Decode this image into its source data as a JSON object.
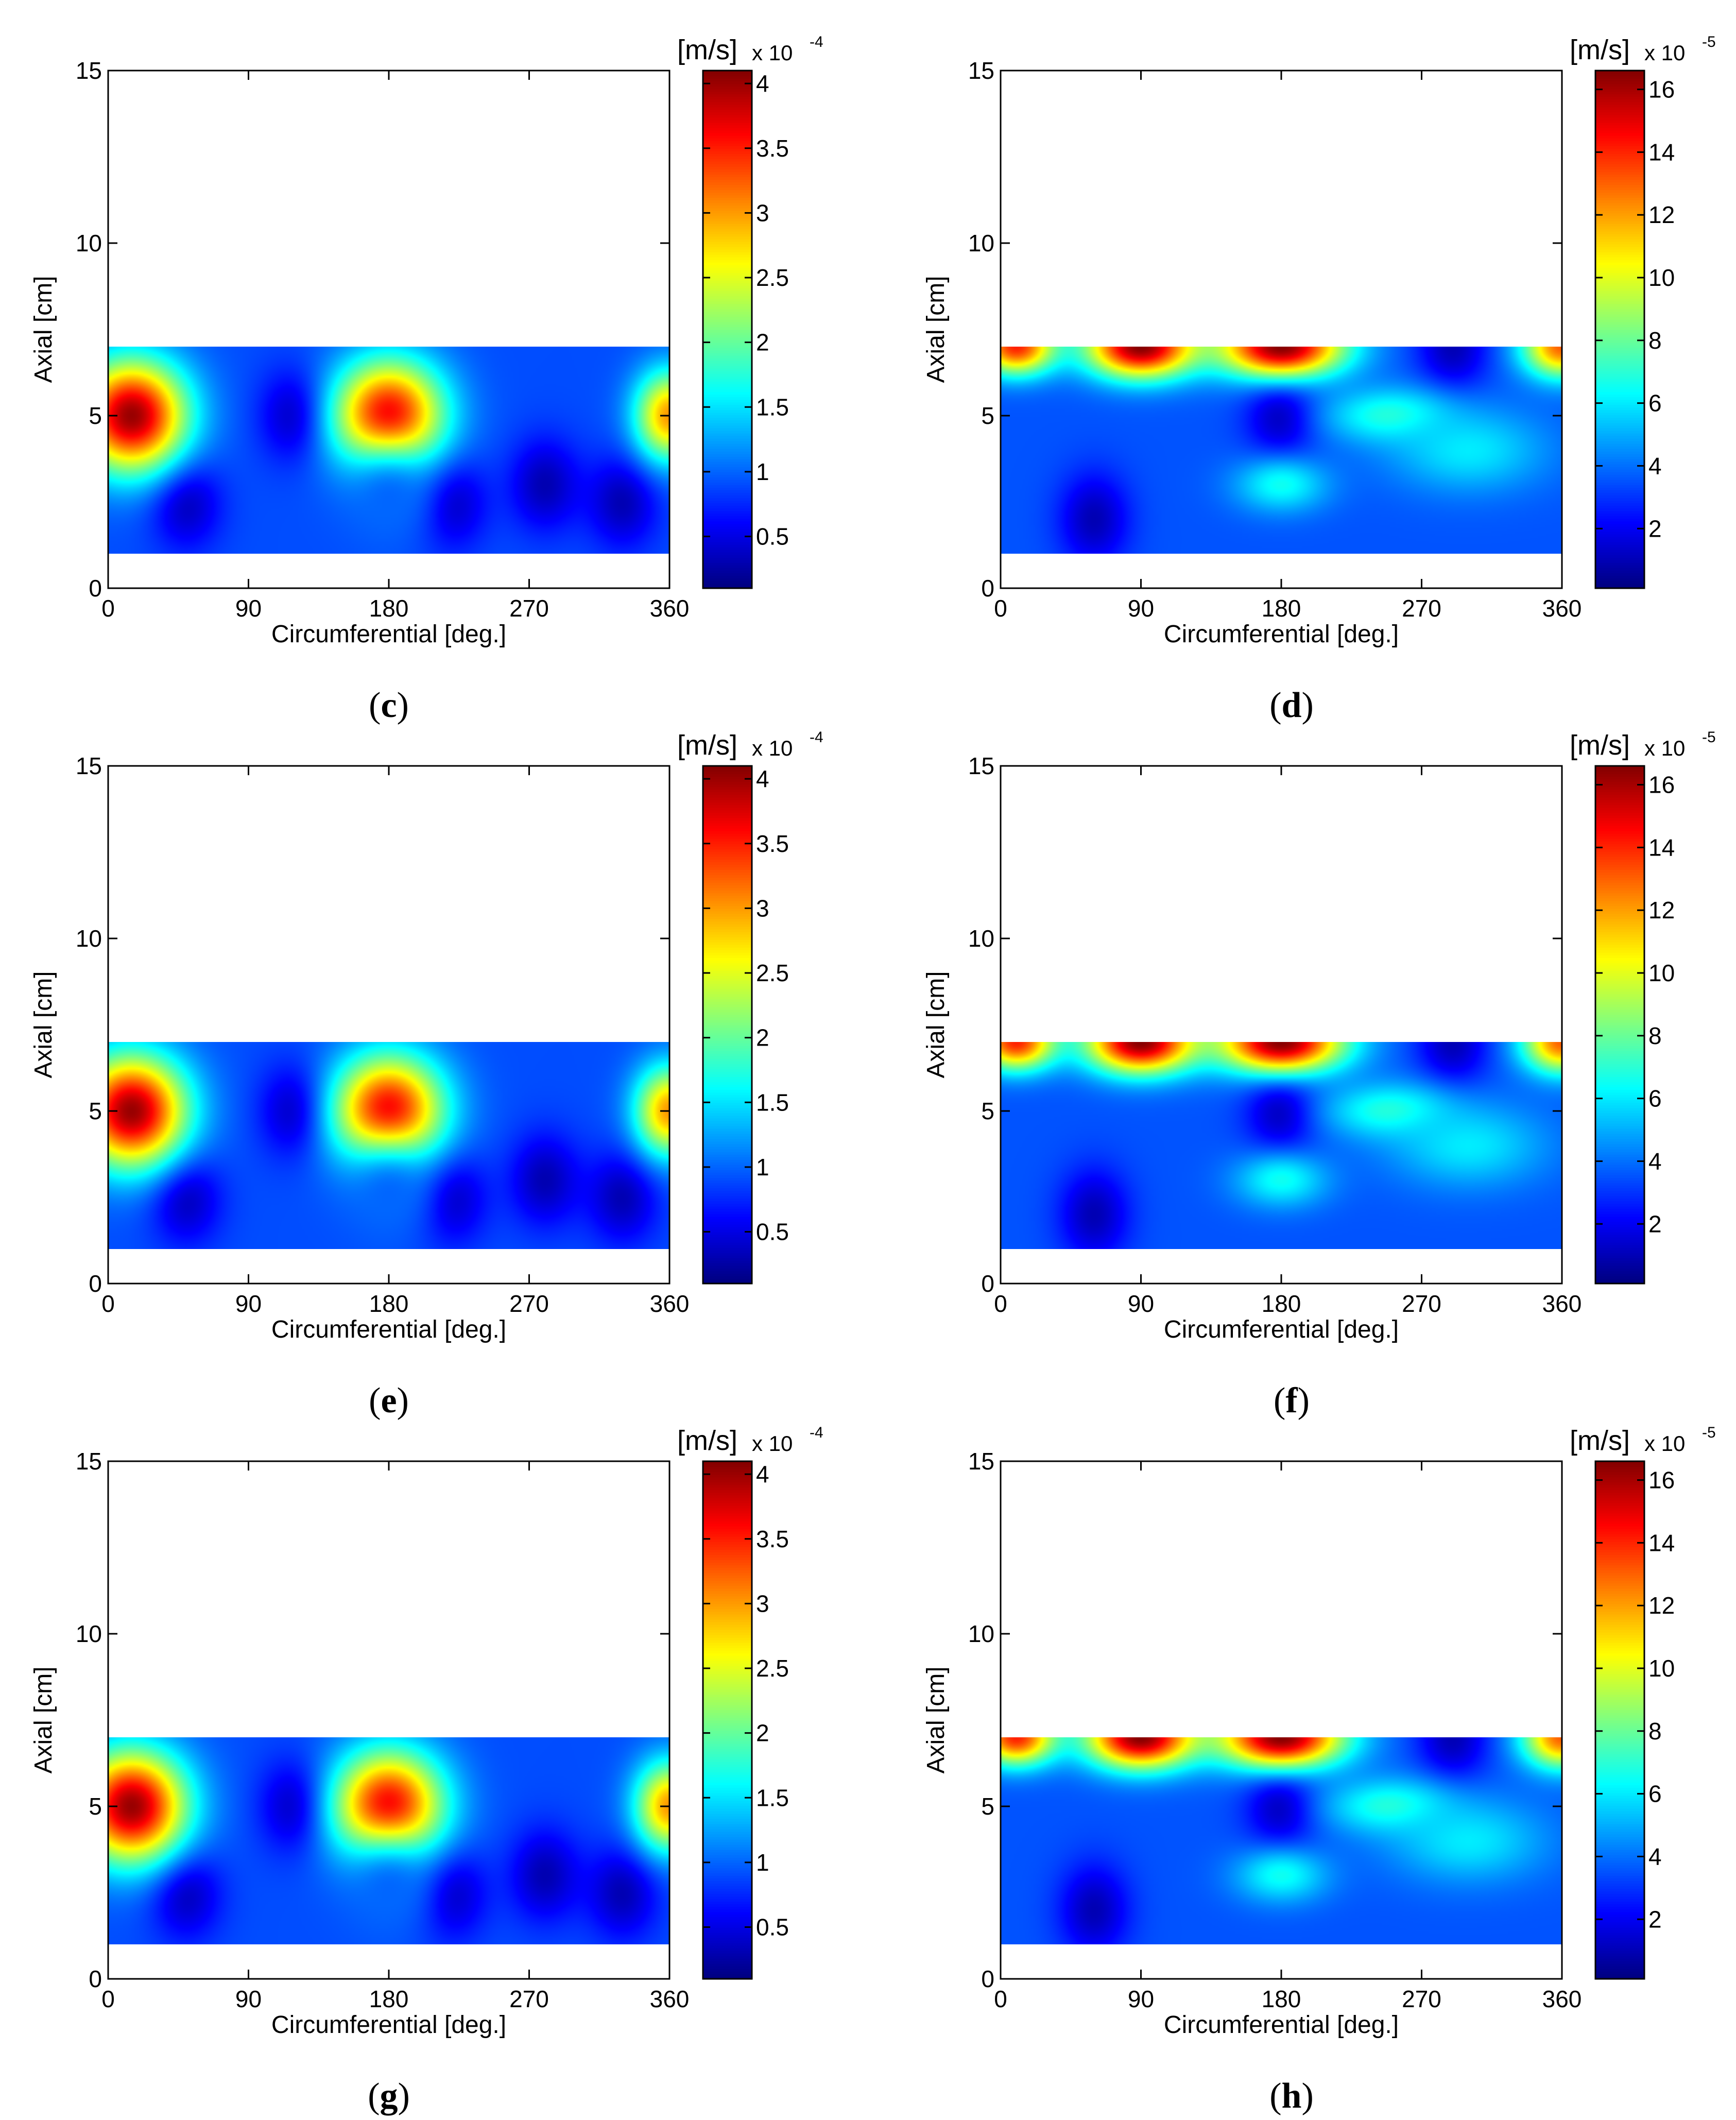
{
  "chart_data": [
    {
      "panel": "c",
      "type": "heatmap",
      "xlabel": "Circumferential [deg.]",
      "ylabel": "Axial [cm]",
      "xlim": [
        0,
        360
      ],
      "ylim": [
        0,
        15
      ],
      "xticks": [
        "0",
        "90",
        "180",
        "270",
        "360"
      ],
      "yticks": [
        "0",
        "5",
        "10",
        "15"
      ],
      "data_extent": {
        "x": [
          0,
          360
        ],
        "y": [
          1,
          7
        ]
      },
      "colormap": "jet",
      "colorbar": {
        "unit": "[m/s]",
        "multiplier": "x 10",
        "exponent": "-4",
        "range": [
          0.1,
          4.1
        ],
        "ticks": [
          "0.5",
          "1",
          "1.5",
          "2",
          "2.5",
          "3",
          "3.5",
          "4"
        ]
      },
      "hotspots": [
        {
          "x": 15,
          "y": 5,
          "value": 4.0,
          "sx": 35,
          "sy": 1.6
        },
        {
          "x": 180,
          "y": 5,
          "value": 3.7,
          "sx": 35,
          "sy": 1.6
        },
        {
          "x": 360,
          "y": 5,
          "value": 3.0,
          "sx": 22,
          "sy": 1.3
        },
        {
          "x": 180,
          "y": 2.5,
          "value": 1.0,
          "sx": 30,
          "sy": 1.5
        }
      ],
      "background": 0.9,
      "darkspots": [
        {
          "x": 50,
          "y": 2.5
        },
        {
          "x": 120,
          "y": 5
        },
        {
          "x": 220,
          "y": 2.5
        },
        {
          "x": 280,
          "y": 3
        },
        {
          "x": 330,
          "y": 2.5
        }
      ],
      "caption": "c"
    },
    {
      "panel": "d",
      "type": "heatmap",
      "xlabel": "Circumferential [deg.]",
      "ylabel": "Axial [cm]",
      "xlim": [
        0,
        360
      ],
      "ylim": [
        0,
        15
      ],
      "xticks": [
        "0",
        "90",
        "180",
        "270",
        "360"
      ],
      "yticks": [
        "0",
        "5",
        "10",
        "15"
      ],
      "data_extent": {
        "x": [
          0,
          360
        ],
        "y": [
          1,
          7
        ]
      },
      "colormap": "jet",
      "colorbar": {
        "unit": "[m/s]",
        "multiplier": "x 10",
        "exponent": "-5",
        "range": [
          0.1,
          16.6
        ],
        "ticks": [
          "2",
          "4",
          "6",
          "8",
          "10",
          "12",
          "14",
          "16"
        ]
      },
      "hotspots": [
        {
          "x": 10,
          "y": 7,
          "value": 14,
          "sx": 25,
          "sy": 0.8
        },
        {
          "x": 90,
          "y": 7,
          "value": 16.5,
          "sx": 35,
          "sy": 0.9
        },
        {
          "x": 180,
          "y": 7,
          "value": 16.5,
          "sx": 40,
          "sy": 0.9
        },
        {
          "x": 360,
          "y": 7,
          "value": 13,
          "sx": 25,
          "sy": 0.9
        },
        {
          "x": 250,
          "y": 5,
          "value": 7,
          "sx": 40,
          "sy": 0.8
        },
        {
          "x": 180,
          "y": 3,
          "value": 6.5,
          "sx": 30,
          "sy": 0.8
        },
        {
          "x": 300,
          "y": 4,
          "value": 6,
          "sx": 50,
          "sy": 1.2
        }
      ],
      "background": 3.5,
      "darkspots": [
        {
          "x": 180,
          "y": 5
        },
        {
          "x": 290,
          "y": 7
        },
        {
          "x": 60,
          "y": 2
        }
      ],
      "caption": "d"
    },
    {
      "panel": "e",
      "type": "heatmap",
      "xlabel": "Circumferential [deg.]",
      "ylabel": "Axial [cm]",
      "xlim": [
        0,
        360
      ],
      "ylim": [
        0,
        15
      ],
      "xticks": [
        "0",
        "90",
        "180",
        "270",
        "360"
      ],
      "yticks": [
        "0",
        "5",
        "10",
        "15"
      ],
      "data_extent": {
        "x": [
          0,
          360
        ],
        "y": [
          1,
          7
        ]
      },
      "colormap": "jet",
      "colorbar": {
        "unit": "[m/s]",
        "multiplier": "x 10",
        "exponent": "-4",
        "range": [
          0.1,
          4.1
        ],
        "ticks": [
          "0.5",
          "1",
          "1.5",
          "2",
          "2.5",
          "3",
          "3.5",
          "4"
        ]
      },
      "hotspots": [
        {
          "x": 15,
          "y": 5,
          "value": 4.0,
          "sx": 35,
          "sy": 1.6
        },
        {
          "x": 180,
          "y": 5,
          "value": 3.7,
          "sx": 35,
          "sy": 1.6
        },
        {
          "x": 360,
          "y": 5,
          "value": 3.0,
          "sx": 22,
          "sy": 1.3
        },
        {
          "x": 180,
          "y": 2.5,
          "value": 1.0,
          "sx": 30,
          "sy": 1.5
        }
      ],
      "background": 0.9,
      "darkspots": [
        {
          "x": 50,
          "y": 2.5
        },
        {
          "x": 120,
          "y": 5
        },
        {
          "x": 220,
          "y": 2.5
        },
        {
          "x": 280,
          "y": 3
        },
        {
          "x": 330,
          "y": 2.5
        }
      ],
      "caption": "e"
    },
    {
      "panel": "f",
      "type": "heatmap",
      "xlabel": "Circumferential [deg.]",
      "ylabel": "Axial [cm]",
      "xlim": [
        0,
        360
      ],
      "ylim": [
        0,
        15
      ],
      "xticks": [
        "0",
        "90",
        "180",
        "270",
        "360"
      ],
      "yticks": [
        "0",
        "5",
        "10",
        "15"
      ],
      "data_extent": {
        "x": [
          0,
          360
        ],
        "y": [
          1,
          7
        ]
      },
      "colormap": "jet",
      "colorbar": {
        "unit": "[m/s]",
        "multiplier": "x 10",
        "exponent": "-5",
        "range": [
          0.1,
          16.6
        ],
        "ticks": [
          "2",
          "4",
          "6",
          "8",
          "10",
          "12",
          "14",
          "16"
        ]
      },
      "hotspots": [
        {
          "x": 10,
          "y": 7,
          "value": 14,
          "sx": 25,
          "sy": 0.8
        },
        {
          "x": 90,
          "y": 7,
          "value": 16.5,
          "sx": 35,
          "sy": 0.9
        },
        {
          "x": 180,
          "y": 7,
          "value": 16.5,
          "sx": 40,
          "sy": 0.9
        },
        {
          "x": 360,
          "y": 7,
          "value": 13,
          "sx": 25,
          "sy": 0.9
        },
        {
          "x": 250,
          "y": 5,
          "value": 7,
          "sx": 40,
          "sy": 0.8
        },
        {
          "x": 180,
          "y": 3,
          "value": 6.5,
          "sx": 30,
          "sy": 0.8
        },
        {
          "x": 300,
          "y": 4,
          "value": 6,
          "sx": 50,
          "sy": 1.2
        }
      ],
      "background": 3.5,
      "darkspots": [
        {
          "x": 180,
          "y": 5
        },
        {
          "x": 290,
          "y": 7
        },
        {
          "x": 60,
          "y": 2
        }
      ],
      "caption": "f"
    },
    {
      "panel": "g",
      "type": "heatmap",
      "xlabel": "Circumferential [deg.]",
      "ylabel": "Axial [cm]",
      "xlim": [
        0,
        360
      ],
      "ylim": [
        0,
        15
      ],
      "xticks": [
        "0",
        "90",
        "180",
        "270",
        "360"
      ],
      "yticks": [
        "0",
        "5",
        "10",
        "15"
      ],
      "data_extent": {
        "x": [
          0,
          360
        ],
        "y": [
          1,
          7
        ]
      },
      "colormap": "jet",
      "colorbar": {
        "unit": "[m/s]",
        "multiplier": "x 10",
        "exponent": "-4",
        "range": [
          0.1,
          4.1
        ],
        "ticks": [
          "0.5",
          "1",
          "1.5",
          "2",
          "2.5",
          "3",
          "3.5",
          "4"
        ]
      },
      "hotspots": [
        {
          "x": 15,
          "y": 5,
          "value": 4.0,
          "sx": 35,
          "sy": 1.6
        },
        {
          "x": 180,
          "y": 5,
          "value": 3.7,
          "sx": 35,
          "sy": 1.6
        },
        {
          "x": 360,
          "y": 5,
          "value": 3.0,
          "sx": 22,
          "sy": 1.3
        },
        {
          "x": 180,
          "y": 2.5,
          "value": 1.0,
          "sx": 30,
          "sy": 1.5
        }
      ],
      "background": 0.9,
      "darkspots": [
        {
          "x": 50,
          "y": 2.5
        },
        {
          "x": 120,
          "y": 5
        },
        {
          "x": 220,
          "y": 2.5
        },
        {
          "x": 280,
          "y": 3
        },
        {
          "x": 330,
          "y": 2.5
        }
      ],
      "caption": "g"
    },
    {
      "panel": "h",
      "type": "heatmap",
      "xlabel": "Circumferential [deg.]",
      "ylabel": "Axial [cm]",
      "xlim": [
        0,
        360
      ],
      "ylim": [
        0,
        15
      ],
      "xticks": [
        "0",
        "90",
        "180",
        "270",
        "360"
      ],
      "yticks": [
        "0",
        "5",
        "10",
        "15"
      ],
      "data_extent": {
        "x": [
          0,
          360
        ],
        "y": [
          1,
          7
        ]
      },
      "colormap": "jet",
      "colorbar": {
        "unit": "[m/s]",
        "multiplier": "x 10",
        "exponent": "-5",
        "range": [
          0.1,
          16.6
        ],
        "ticks": [
          "2",
          "4",
          "6",
          "8",
          "10",
          "12",
          "14",
          "16"
        ]
      },
      "hotspots": [
        {
          "x": 10,
          "y": 7,
          "value": 14,
          "sx": 25,
          "sy": 0.8
        },
        {
          "x": 90,
          "y": 7,
          "value": 16.5,
          "sx": 35,
          "sy": 0.9
        },
        {
          "x": 180,
          "y": 7,
          "value": 16.5,
          "sx": 40,
          "sy": 0.9
        },
        {
          "x": 360,
          "y": 7,
          "value": 13,
          "sx": 25,
          "sy": 0.9
        },
        {
          "x": 250,
          "y": 5,
          "value": 7,
          "sx": 40,
          "sy": 0.8
        },
        {
          "x": 180,
          "y": 3,
          "value": 6.5,
          "sx": 30,
          "sy": 0.8
        },
        {
          "x": 300,
          "y": 4,
          "value": 6,
          "sx": 50,
          "sy": 1.2
        }
      ],
      "background": 3.5,
      "darkspots": [
        {
          "x": 180,
          "y": 5
        },
        {
          "x": 290,
          "y": 7
        },
        {
          "x": 60,
          "y": 2
        }
      ],
      "caption": "h"
    }
  ]
}
